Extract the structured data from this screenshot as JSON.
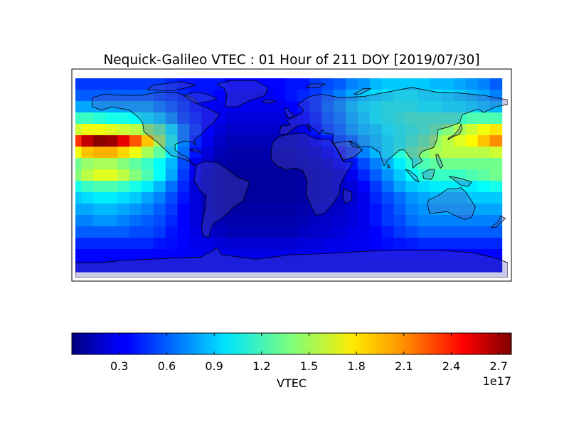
{
  "chart_data": [
    {
      "type": "heatmap",
      "title": "Nequick-Galileo VTEC : 01 Hour of 211 DOY [2019/07/30]",
      "xlabel": "",
      "ylabel": "",
      "x": [
        -180,
        -170,
        -160,
        -150,
        -140,
        -130,
        -120,
        -110,
        -100,
        -90,
        -80,
        -70,
        -60,
        -50,
        -40,
        -30,
        -20,
        -10,
        0,
        10,
        20,
        30,
        40,
        50,
        60,
        70,
        80,
        90,
        100,
        110,
        120,
        130,
        140,
        150,
        160,
        170
      ],
      "y": [
        80,
        70,
        60,
        50,
        40,
        30,
        20,
        10,
        0,
        -10,
        -20,
        -30,
        -40,
        -50,
        -60,
        -70,
        -80
      ],
      "z_scale": 1e+17,
      "z": [
        [
          0.5,
          0.5,
          0.5,
          0.5,
          0.5,
          0.5,
          0.5,
          0.5,
          0.45,
          0.4,
          0.4,
          0.4,
          0.4,
          0.35,
          0.35,
          0.35,
          0.35,
          0.35,
          0.4,
          0.4,
          0.5,
          0.55,
          0.6,
          0.7,
          0.75,
          0.85,
          0.9,
          0.9,
          0.9,
          0.9,
          0.85,
          0.85,
          0.8,
          0.75,
          0.7,
          0.6
        ],
        [
          0.6,
          0.6,
          0.6,
          0.6,
          0.6,
          0.6,
          0.6,
          0.55,
          0.5,
          0.45,
          0.4,
          0.4,
          0.35,
          0.3,
          0.3,
          0.3,
          0.3,
          0.35,
          0.4,
          0.45,
          0.5,
          0.6,
          0.7,
          0.8,
          0.9,
          0.95,
          1.0,
          1.05,
          1.05,
          1.0,
          1.0,
          0.95,
          0.9,
          0.85,
          0.8,
          0.7
        ],
        [
          0.8,
          0.8,
          0.8,
          0.8,
          0.8,
          0.8,
          0.8,
          0.7,
          0.6,
          0.5,
          0.4,
          0.35,
          0.3,
          0.3,
          0.3,
          0.3,
          0.3,
          0.3,
          0.35,
          0.4,
          0.5,
          0.65,
          0.75,
          0.9,
          1.0,
          1.05,
          1.1,
          1.1,
          1.1,
          1.05,
          1.05,
          1.0,
          1.0,
          0.95,
          0.9,
          0.85
        ],
        [
          1.2,
          1.2,
          1.15,
          1.1,
          1.1,
          1.05,
          1.0,
          0.9,
          0.75,
          0.55,
          0.45,
          0.35,
          0.3,
          0.25,
          0.25,
          0.25,
          0.25,
          0.25,
          0.3,
          0.35,
          0.45,
          0.6,
          0.7,
          0.85,
          0.95,
          1.05,
          1.1,
          1.15,
          1.2,
          1.2,
          1.2,
          1.2,
          1.2,
          1.25,
          1.25,
          1.25
        ],
        [
          1.6,
          1.7,
          1.7,
          1.65,
          1.6,
          1.55,
          1.45,
          1.3,
          1.0,
          0.7,
          0.5,
          0.35,
          0.25,
          0.2,
          0.2,
          0.2,
          0.2,
          0.2,
          0.2,
          0.3,
          0.4,
          0.55,
          0.65,
          0.8,
          0.9,
          0.95,
          1.05,
          1.1,
          1.15,
          1.2,
          1.3,
          1.4,
          1.5,
          1.6,
          1.7,
          1.8
        ],
        [
          2.3,
          2.6,
          2.75,
          2.7,
          2.5,
          2.2,
          1.9,
          1.5,
          1.1,
          0.7,
          0.45,
          0.3,
          0.2,
          0.15,
          0.15,
          0.15,
          0.15,
          0.15,
          0.15,
          0.2,
          0.3,
          0.4,
          0.55,
          0.65,
          0.8,
          0.9,
          1.0,
          1.1,
          1.2,
          1.3,
          1.45,
          1.55,
          1.65,
          1.75,
          1.9,
          2.05
        ],
        [
          1.7,
          1.9,
          1.95,
          1.95,
          1.85,
          1.7,
          1.5,
          1.3,
          1.0,
          0.65,
          0.4,
          0.25,
          0.15,
          0.12,
          0.12,
          0.12,
          0.12,
          0.12,
          0.12,
          0.15,
          0.2,
          0.3,
          0.4,
          0.55,
          0.7,
          0.85,
          1.0,
          1.15,
          1.3,
          1.4,
          1.5,
          1.55,
          1.55,
          1.55,
          1.55,
          1.6
        ],
        [
          1.35,
          1.45,
          1.5,
          1.5,
          1.4,
          1.3,
          1.2,
          1.05,
          0.85,
          0.55,
          0.3,
          0.2,
          0.12,
          0.1,
          0.1,
          0.1,
          0.1,
          0.1,
          0.1,
          0.12,
          0.15,
          0.2,
          0.3,
          0.4,
          0.55,
          0.7,
          0.85,
          1.0,
          1.15,
          1.25,
          1.3,
          1.35,
          1.35,
          1.35,
          1.35,
          1.35
        ],
        [
          1.4,
          1.55,
          1.65,
          1.65,
          1.55,
          1.4,
          1.25,
          1.05,
          0.8,
          0.5,
          0.3,
          0.15,
          0.1,
          0.08,
          0.08,
          0.08,
          0.08,
          0.08,
          0.08,
          0.1,
          0.12,
          0.15,
          0.2,
          0.3,
          0.45,
          0.6,
          0.75,
          0.9,
          1.05,
          1.15,
          1.2,
          1.2,
          1.2,
          1.25,
          1.3,
          1.35
        ],
        [
          1.1,
          1.2,
          1.25,
          1.25,
          1.2,
          1.1,
          1.0,
          0.85,
          0.65,
          0.45,
          0.25,
          0.15,
          0.1,
          0.08,
          0.08,
          0.08,
          0.08,
          0.08,
          0.08,
          0.1,
          0.12,
          0.15,
          0.2,
          0.25,
          0.35,
          0.5,
          0.65,
          0.8,
          0.9,
          0.95,
          1.0,
          1.0,
          1.0,
          1.0,
          1.05,
          1.1
        ],
        [
          0.9,
          0.95,
          1.0,
          1.0,
          0.95,
          0.9,
          0.8,
          0.7,
          0.55,
          0.4,
          0.25,
          0.15,
          0.1,
          0.08,
          0.08,
          0.08,
          0.08,
          0.08,
          0.08,
          0.1,
          0.12,
          0.15,
          0.18,
          0.22,
          0.3,
          0.45,
          0.55,
          0.65,
          0.75,
          0.8,
          0.85,
          0.85,
          0.85,
          0.9,
          0.9,
          0.9
        ],
        [
          0.8,
          0.8,
          0.85,
          0.85,
          0.8,
          0.75,
          0.7,
          0.6,
          0.5,
          0.35,
          0.25,
          0.15,
          0.1,
          0.1,
          0.1,
          0.1,
          0.1,
          0.1,
          0.1,
          0.12,
          0.15,
          0.18,
          0.2,
          0.25,
          0.3,
          0.4,
          0.5,
          0.6,
          0.7,
          0.75,
          0.8,
          0.8,
          0.8,
          0.8,
          0.8,
          0.8
        ],
        [
          0.7,
          0.7,
          0.75,
          0.75,
          0.7,
          0.65,
          0.6,
          0.55,
          0.45,
          0.35,
          0.25,
          0.18,
          0.15,
          0.12,
          0.12,
          0.12,
          0.12,
          0.12,
          0.12,
          0.15,
          0.18,
          0.2,
          0.22,
          0.25,
          0.3,
          0.4,
          0.5,
          0.55,
          0.65,
          0.7,
          0.7,
          0.7,
          0.7,
          0.7,
          0.7,
          0.7
        ],
        [
          0.6,
          0.6,
          0.6,
          0.6,
          0.6,
          0.55,
          0.55,
          0.5,
          0.4,
          0.35,
          0.28,
          0.22,
          0.18,
          0.15,
          0.15,
          0.15,
          0.15,
          0.15,
          0.15,
          0.18,
          0.2,
          0.22,
          0.25,
          0.28,
          0.3,
          0.35,
          0.42,
          0.5,
          0.55,
          0.6,
          0.6,
          0.6,
          0.6,
          0.6,
          0.6,
          0.6
        ],
        [
          0.45,
          0.45,
          0.45,
          0.45,
          0.45,
          0.45,
          0.45,
          0.4,
          0.38,
          0.35,
          0.3,
          0.28,
          0.25,
          0.22,
          0.22,
          0.22,
          0.22,
          0.22,
          0.22,
          0.25,
          0.25,
          0.28,
          0.28,
          0.3,
          0.32,
          0.35,
          0.38,
          0.4,
          0.42,
          0.45,
          0.45,
          0.45,
          0.45,
          0.45,
          0.45,
          0.45
        ],
        [
          0.35,
          0.35,
          0.35,
          0.35,
          0.35,
          0.35,
          0.35,
          0.35,
          0.35,
          0.33,
          0.32,
          0.3,
          0.3,
          0.28,
          0.28,
          0.28,
          0.28,
          0.28,
          0.28,
          0.3,
          0.3,
          0.3,
          0.3,
          0.3,
          0.32,
          0.33,
          0.35,
          0.35,
          0.35,
          0.35,
          0.35,
          0.35,
          0.35,
          0.35,
          0.35,
          0.35
        ],
        [
          0.3,
          0.3,
          0.3,
          0.3,
          0.3,
          0.3,
          0.3,
          0.3,
          0.3,
          0.3,
          0.3,
          0.3,
          0.3,
          0.3,
          0.3,
          0.3,
          0.3,
          0.3,
          0.3,
          0.3,
          0.3,
          0.3,
          0.3,
          0.3,
          0.3,
          0.3,
          0.3,
          0.3,
          0.3,
          0.3,
          0.3,
          0.3,
          0.3,
          0.3,
          0.3,
          0.3
        ]
      ],
      "xlim": [
        -180,
        180
      ],
      "ylim": [
        -90,
        90
      ],
      "grid": false
    },
    {
      "type": "colorbar",
      "label": "VTEC",
      "orientation": "horizontal",
      "colormap": "jet",
      "range": [
        0.0,
        2.78
      ],
      "ticks": [
        0.3,
        0.6,
        0.9,
        1.2,
        1.5,
        1.8,
        2.1,
        2.4,
        2.7
      ],
      "tick_labels": [
        "0.3",
        "0.6",
        "0.9",
        "1.2",
        "1.5",
        "1.8",
        "2.1",
        "2.4",
        "2.7"
      ],
      "offset_text": "1e17"
    }
  ]
}
